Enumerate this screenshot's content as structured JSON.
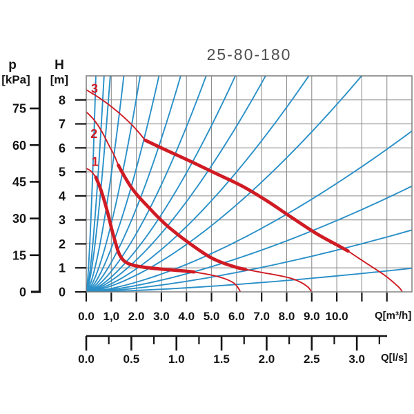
{
  "colors": {
    "pump_curve_red": "#d01b24",
    "system_curve_blue": "#2a90c8",
    "grid_gray": "#8e8e8e",
    "border_gray": "#787878",
    "axis_black": "#141414",
    "title_gray": "#4f4f4f"
  },
  "chart_data": {
    "type": "line",
    "title": "25-80-180",
    "p_axis": {
      "name": "p",
      "unit": "[kPa]",
      "ticks": [
        0,
        15,
        30,
        45,
        60,
        75
      ],
      "kpa_per_m_water": 9.81
    },
    "h_axis": {
      "name": "H",
      "unit": "[m]",
      "ticks": [
        0,
        1,
        2,
        3,
        4,
        5,
        6,
        7,
        8
      ],
      "range": [
        0,
        9
      ],
      "grid": true
    },
    "q_axis": {
      "label": "Q[m³/h]",
      "tick_labels": [
        "0.0",
        "1,0",
        "2.0",
        "3.0",
        "4.0",
        "5.0",
        "6.0",
        "7.0",
        "8.0",
        "9.0",
        "10.0"
      ],
      "tick_values": [
        0,
        1,
        2,
        3,
        4,
        5,
        6,
        7,
        8,
        9,
        10
      ],
      "unlabeled_tick_values": [
        11,
        12
      ],
      "range": [
        0,
        13
      ],
      "grid": true
    },
    "ls_axis": {
      "label": "Q[l/s]",
      "tick_labels": [
        "0.0",
        "0.5",
        "1.0",
        "1.5",
        "2.0",
        "2.5",
        "3.0"
      ],
      "tick_values": [
        0,
        0.5,
        1.0,
        1.5,
        2.0,
        2.5,
        3.0
      ],
      "minor_tick_step": 0.25,
      "max_minor_tick": 3.25,
      "m3h_per_ls": 3.6
    },
    "pump_curves": [
      {
        "label": "1",
        "label_at": [
          0.35,
          5.42
        ],
        "lead": [
          [
            0,
            5.15
          ],
          [
            0.2,
            5.02
          ],
          [
            0.38,
            4.78
          ]
        ],
        "thick": [
          [
            0.38,
            4.78
          ],
          [
            0.55,
            4.35
          ],
          [
            0.72,
            3.8
          ],
          [
            0.88,
            3.2
          ],
          [
            1.02,
            2.6
          ],
          [
            1.16,
            2.08
          ],
          [
            1.3,
            1.62
          ],
          [
            1.48,
            1.32
          ],
          [
            1.72,
            1.16
          ],
          [
            2.1,
            1.06
          ],
          [
            2.6,
            0.99
          ],
          [
            3.2,
            0.93
          ],
          [
            3.8,
            0.88
          ],
          [
            4.3,
            0.83
          ]
        ],
        "tail": [
          [
            4.3,
            0.83
          ],
          [
            5.0,
            0.7
          ],
          [
            5.5,
            0.56
          ],
          [
            5.9,
            0.36
          ],
          [
            6.08,
            0.14
          ],
          [
            6.14,
            0.02
          ]
        ]
      },
      {
        "label": "2",
        "label_at": [
          0.31,
          6.58
        ],
        "lead": [
          [
            0,
            7.5
          ],
          [
            0.3,
            7.18
          ],
          [
            0.6,
            6.72
          ],
          [
            0.9,
            6.12
          ],
          [
            1.12,
            5.68
          ],
          [
            1.28,
            5.28
          ]
        ],
        "thick": [
          [
            1.28,
            5.28
          ],
          [
            1.52,
            4.82
          ],
          [
            1.78,
            4.38
          ],
          [
            2.08,
            3.98
          ],
          [
            2.42,
            3.6
          ],
          [
            2.82,
            3.16
          ],
          [
            3.22,
            2.76
          ],
          [
            3.62,
            2.42
          ],
          [
            4.02,
            2.1
          ],
          [
            4.45,
            1.78
          ],
          [
            4.92,
            1.46
          ],
          [
            5.42,
            1.22
          ],
          [
            6.0,
            1.02
          ],
          [
            6.35,
            0.94
          ]
        ],
        "tail": [
          [
            6.35,
            0.94
          ],
          [
            7.0,
            0.81
          ],
          [
            7.6,
            0.7
          ],
          [
            8.12,
            0.58
          ],
          [
            8.52,
            0.42
          ],
          [
            8.85,
            0.2
          ],
          [
            8.97,
            0.03
          ]
        ]
      },
      {
        "label": "3",
        "label_at": [
          0.33,
          8.47
        ],
        "lead": [
          [
            0,
            8.42
          ],
          [
            0.5,
            8.1
          ],
          [
            1.0,
            7.72
          ],
          [
            1.5,
            7.28
          ],
          [
            1.95,
            6.82
          ],
          [
            2.35,
            6.32
          ]
        ],
        "thick": [
          [
            2.35,
            6.32
          ],
          [
            3.2,
            5.9
          ],
          [
            4.2,
            5.42
          ],
          [
            5.2,
            4.92
          ],
          [
            6.2,
            4.42
          ],
          [
            7.2,
            3.8
          ],
          [
            8.2,
            3.1
          ],
          [
            9.2,
            2.42
          ],
          [
            10.0,
            1.96
          ],
          [
            10.45,
            1.7
          ]
        ],
        "tail": [
          [
            10.45,
            1.7
          ],
          [
            11.2,
            1.18
          ],
          [
            11.9,
            0.7
          ],
          [
            12.45,
            0.22
          ],
          [
            12.6,
            0.03
          ]
        ]
      }
    ],
    "system_curves": {
      "model": "H = k * Q^exponent, from origin",
      "exponent": 1.5,
      "k_values": [
        38,
        15,
        9.6,
        4.9,
        2.85,
        1.82,
        1.23,
        0.86,
        0.62,
        0.47,
        0.34,
        0.247,
        0.143,
        0.094,
        0.055,
        0.021
      ]
    }
  }
}
